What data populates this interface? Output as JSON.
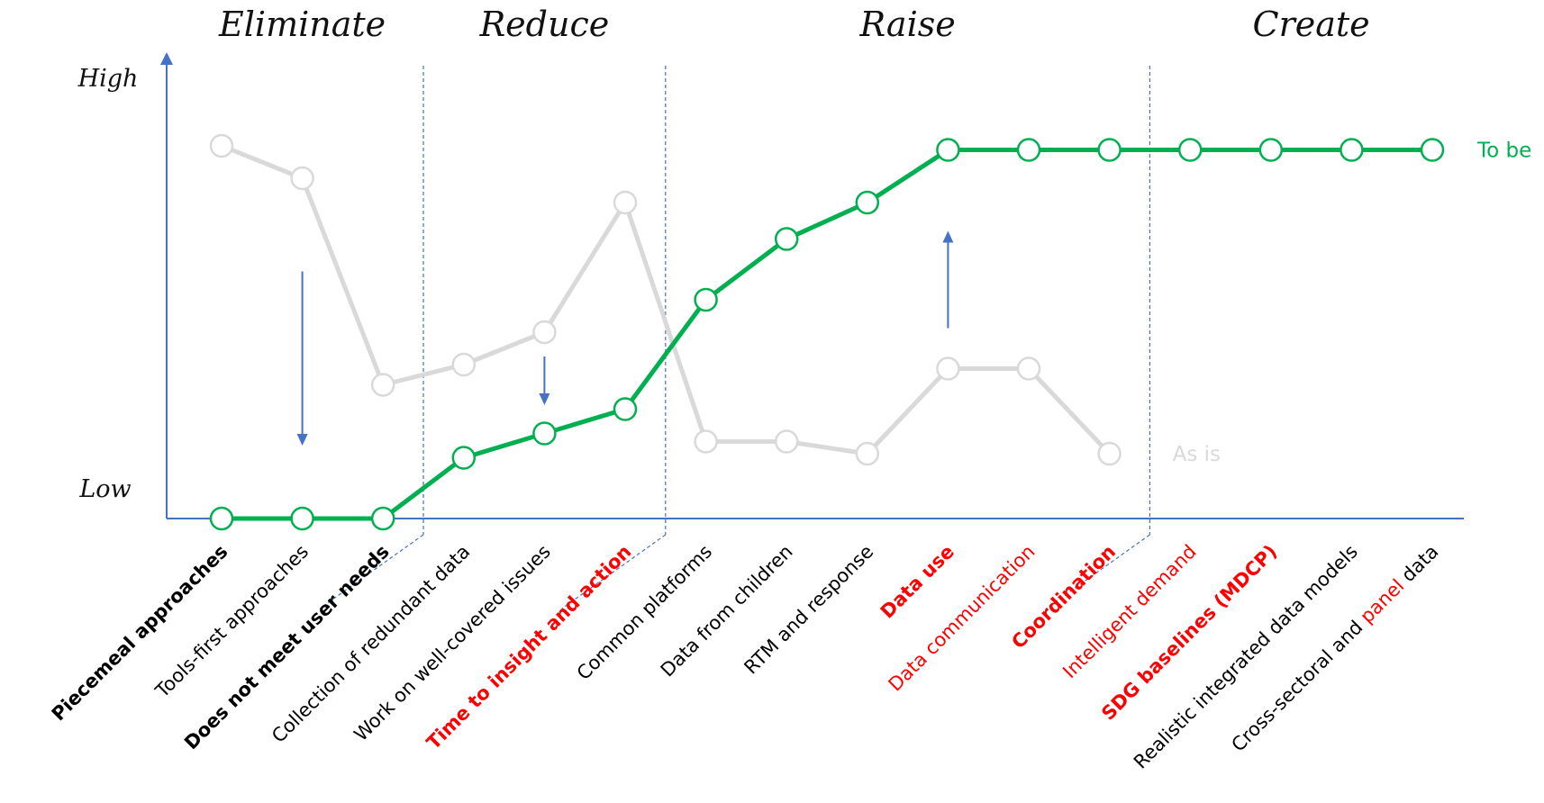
{
  "chart_data": {
    "type": "line",
    "sections": [
      "Eliminate",
      "Reduce",
      "Raise",
      "Create"
    ],
    "y_axis": {
      "high_label": "High",
      "low_label": "Low"
    },
    "ylim": [
      0,
      100
    ],
    "grid": false,
    "categories": [
      {
        "segments": [
          {
            "text": "Piecemeal approaches"
          }
        ],
        "color": "#000000",
        "bold": true
      },
      {
        "segments": [
          {
            "text": "Tools-first approaches"
          }
        ],
        "color": "#000000",
        "bold": false
      },
      {
        "segments": [
          {
            "text": "Does not meet user needs"
          }
        ],
        "color": "#000000",
        "bold": true
      },
      {
        "segments": [
          {
            "text": "Collection of redundant data"
          }
        ],
        "color": "#000000",
        "bold": false
      },
      {
        "segments": [
          {
            "text": "Work on well-covered issues"
          }
        ],
        "color": "#000000",
        "bold": false
      },
      {
        "segments": [
          {
            "text": "Time to insight and action"
          }
        ],
        "color": "#ff0000",
        "bold": true
      },
      {
        "segments": [
          {
            "text": "Common platforms"
          }
        ],
        "color": "#000000",
        "bold": false
      },
      {
        "segments": [
          {
            "text": "Data from children"
          }
        ],
        "color": "#000000",
        "bold": false
      },
      {
        "segments": [
          {
            "text": "RTM and response"
          }
        ],
        "color": "#000000",
        "bold": false
      },
      {
        "segments": [
          {
            "text": "Data use"
          }
        ],
        "color": "#ff0000",
        "bold": true
      },
      {
        "segments": [
          {
            "text": "Data communication"
          }
        ],
        "color": "#ff0000",
        "bold": false
      },
      {
        "segments": [
          {
            "text": "Coordination"
          }
        ],
        "color": "#ff0000",
        "bold": true
      },
      {
        "segments": [
          {
            "text": "Intelligent demand"
          }
        ],
        "color": "#ff0000",
        "bold": false
      },
      {
        "segments": [
          {
            "text": "SDG baselines (MDCP)"
          }
        ],
        "color": "#ff0000",
        "bold": true
      },
      {
        "segments": [
          {
            "text": "Realistic integrated data models"
          }
        ],
        "color": "#000000",
        "bold": false
      },
      {
        "segments": [
          {
            "text": "Cross-sectoral and ",
            "color": "#000000"
          },
          {
            "text": "panel",
            "color": "#ff0000"
          },
          {
            "text": "  data",
            "color": "#000000"
          }
        ],
        "color": "#000000",
        "bold": false
      }
    ],
    "series": [
      {
        "name": "As is",
        "color": "#d9d9d9",
        "values": [
          92,
          84,
          33,
          38,
          46,
          78,
          19,
          19,
          16,
          37,
          37,
          16,
          null,
          null,
          null,
          null
        ]
      },
      {
        "name": "To be",
        "color": "#00b050",
        "values": [
          0,
          0,
          0,
          15,
          21,
          27,
          54,
          69,
          78,
          91,
          91,
          91,
          91,
          91,
          91,
          91
        ]
      }
    ],
    "section_boundaries": [
      2.5,
      5.5,
      11.5
    ],
    "arrows": [
      {
        "x": 1,
        "from": 61,
        "to": 18,
        "direction": "down"
      },
      {
        "x": 4,
        "from": 40,
        "to": 28,
        "direction": "down"
      },
      {
        "x": 9,
        "from": 47,
        "to": 71,
        "direction": "up"
      }
    ],
    "colors": {
      "axis": "#4472c4",
      "divider": "#4472c4"
    }
  }
}
